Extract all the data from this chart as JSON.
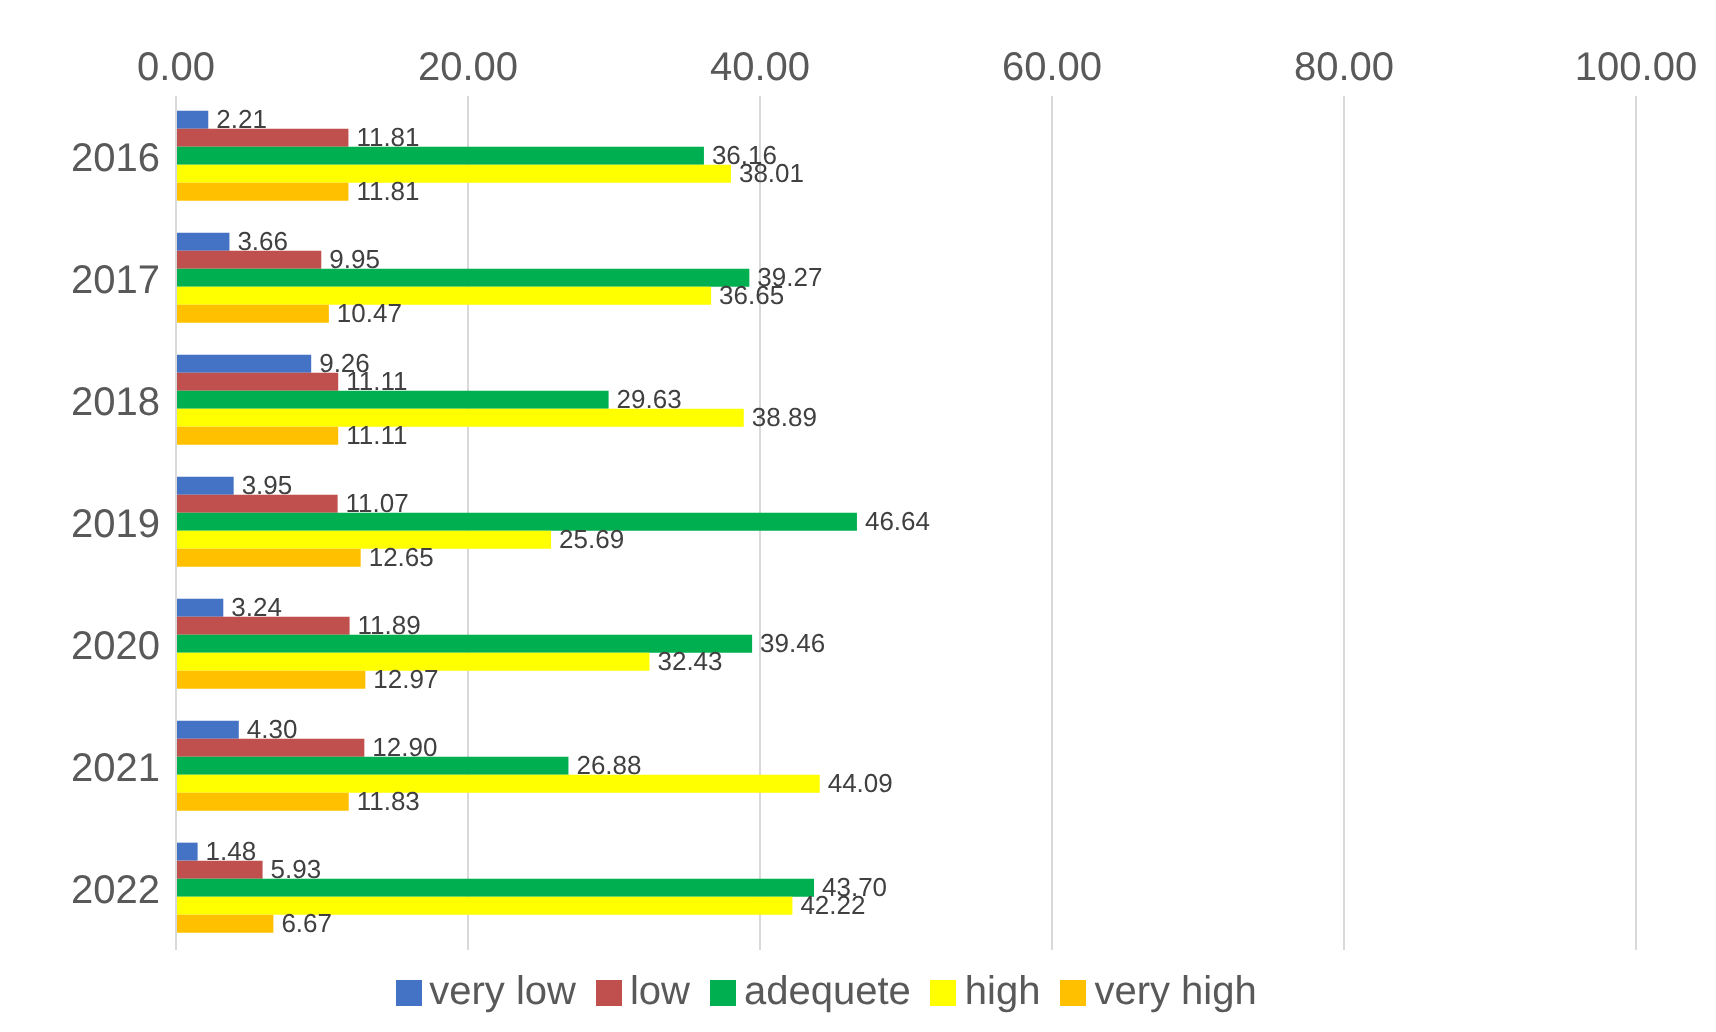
{
  "chart_data": {
    "type": "bar",
    "orientation": "horizontal",
    "categories": [
      "2016",
      "2017",
      "2018",
      "2019",
      "2020",
      "2021",
      "2022"
    ],
    "series": [
      {
        "name": "very low",
        "color": "#4472c4",
        "values": [
          2.21,
          3.66,
          9.26,
          3.95,
          3.24,
          4.3,
          1.48
        ],
        "value_labels": [
          "2.21",
          "3.66",
          "9.26",
          "3.95",
          "3.24",
          "4.30",
          "1.48"
        ]
      },
      {
        "name": "low",
        "color": "#c0504d",
        "values": [
          11.81,
          9.95,
          11.11,
          11.07,
          11.89,
          12.9,
          5.93
        ],
        "value_labels": [
          "11.81",
          "9.95",
          "11.11",
          "11.07",
          "11.89",
          "12.90",
          "5.93"
        ]
      },
      {
        "name": "adequete",
        "color": "#00b050",
        "values": [
          36.16,
          39.27,
          29.63,
          46.64,
          39.46,
          26.88,
          43.7
        ],
        "value_labels": [
          "36.16",
          "39.27",
          "29.63",
          "46.64",
          "39.46",
          "26.88",
          "43.70"
        ]
      },
      {
        "name": "high",
        "color": "#ffff00",
        "values": [
          38.01,
          36.65,
          38.89,
          25.69,
          32.43,
          44.09,
          42.22
        ],
        "value_labels": [
          "38.01",
          "36.65",
          "38.89",
          "25.69",
          "32.43",
          "44.09",
          "42.22"
        ]
      },
      {
        "name": "very high",
        "color": "#ffc000",
        "values": [
          11.81,
          10.47,
          11.11,
          12.65,
          12.97,
          11.83,
          6.67
        ],
        "value_labels": [
          "11.81",
          "10.47",
          "11.11",
          "12.65",
          "12.97",
          "11.83",
          "6.67"
        ]
      }
    ],
    "xlim": [
      0,
      100
    ],
    "xticks": [
      {
        "value": 0,
        "label": "0.00"
      },
      {
        "value": 20,
        "label": "20.00"
      },
      {
        "value": 40,
        "label": "40.00"
      },
      {
        "value": 60,
        "label": "60.00"
      },
      {
        "value": 80,
        "label": "80.00"
      },
      {
        "value": 100,
        "label": "100.00"
      }
    ],
    "grid": "x",
    "legend": "bottom"
  }
}
